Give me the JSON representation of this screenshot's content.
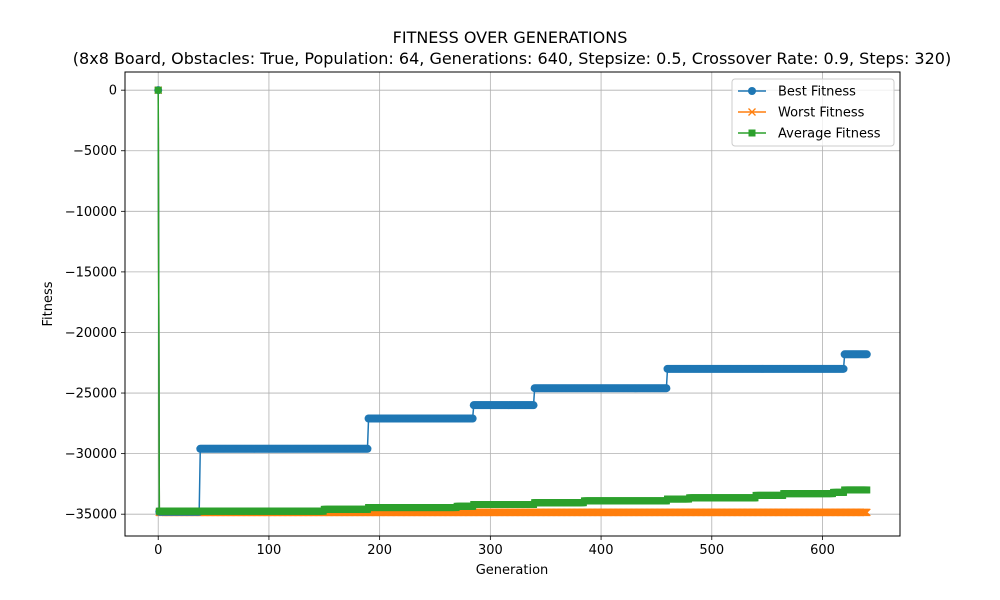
{
  "chart_data": {
    "type": "line",
    "title": "FITNESS OVER GENERATIONS",
    "subtitle": "(8x8 Board, Obstacles: True, Population: 64, Generations: 640, Stepsize: 0.5, Crossover Rate: 0.9, Steps: 320)",
    "xlabel": "Generation",
    "ylabel": "Fitness",
    "xlim": [
      -30,
      670
    ],
    "ylim": [
      -36800,
      1500
    ],
    "xticks": [
      0,
      100,
      200,
      300,
      400,
      500,
      600
    ],
    "xtick_labels": [
      "0",
      "100",
      "200",
      "300",
      "400",
      "500",
      "600"
    ],
    "yticks": [
      0,
      -5000,
      -10000,
      -15000,
      -20000,
      -25000,
      -30000,
      -35000
    ],
    "ytick_labels": [
      "0",
      "−5000",
      "−10000",
      "−15000",
      "−20000",
      "−25000",
      "−30000",
      "−35000"
    ],
    "grid": true,
    "legend_position": "top-right",
    "series": [
      {
        "name": "Best Fitness",
        "color": "#1f77b4",
        "marker": "circle",
        "segments": [
          {
            "x_start": 0,
            "x_end": 0,
            "y": 0
          },
          {
            "x_start": 1,
            "x_end": 37,
            "y": -34800
          },
          {
            "x_start": 38,
            "x_end": 189,
            "y": -29600
          },
          {
            "x_start": 190,
            "x_end": 284,
            "y": -27100
          },
          {
            "x_start": 285,
            "x_end": 339,
            "y": -26000
          },
          {
            "x_start": 340,
            "x_end": 459,
            "y": -24600
          },
          {
            "x_start": 460,
            "x_end": 619,
            "y": -23000
          },
          {
            "x_start": 620,
            "x_end": 640,
            "y": -21800
          }
        ]
      },
      {
        "name": "Worst Fitness",
        "color": "#ff7f0e",
        "marker": "x",
        "segments": [
          {
            "x_start": 0,
            "x_end": 0,
            "y": 0
          },
          {
            "x_start": 1,
            "x_end": 640,
            "y": -34850
          }
        ]
      },
      {
        "name": "Average Fitness",
        "color": "#2ca02c",
        "marker": "square",
        "segments": [
          {
            "x_start": 0,
            "x_end": 0,
            "y": 0
          },
          {
            "x_start": 1,
            "x_end": 149,
            "y": -34750
          },
          {
            "x_start": 150,
            "x_end": 189,
            "y": -34600
          },
          {
            "x_start": 190,
            "x_end": 269,
            "y": -34450
          },
          {
            "x_start": 270,
            "x_end": 284,
            "y": -34350
          },
          {
            "x_start": 285,
            "x_end": 339,
            "y": -34200
          },
          {
            "x_start": 340,
            "x_end": 384,
            "y": -34050
          },
          {
            "x_start": 385,
            "x_end": 459,
            "y": -33900
          },
          {
            "x_start": 460,
            "x_end": 479,
            "y": -33750
          },
          {
            "x_start": 480,
            "x_end": 539,
            "y": -33650
          },
          {
            "x_start": 540,
            "x_end": 564,
            "y": -33450
          },
          {
            "x_start": 565,
            "x_end": 609,
            "y": -33300
          },
          {
            "x_start": 610,
            "x_end": 619,
            "y": -33200
          },
          {
            "x_start": 620,
            "x_end": 640,
            "y": -33000
          }
        ]
      }
    ]
  }
}
